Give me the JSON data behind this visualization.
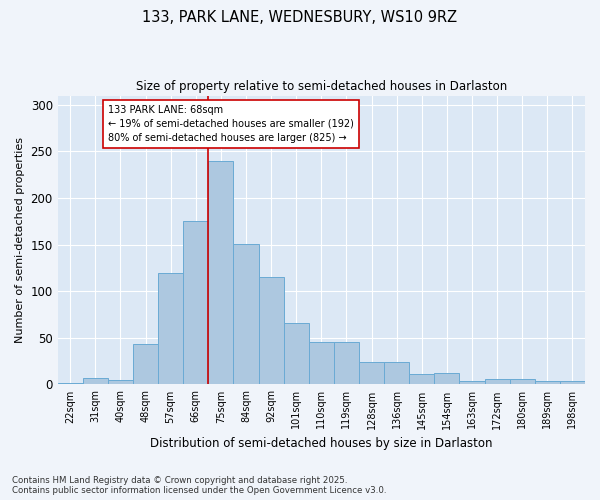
{
  "title1": "133, PARK LANE, WEDNESBURY, WS10 9RZ",
  "title2": "Size of property relative to semi-detached houses in Darlaston",
  "xlabel": "Distribution of semi-detached houses by size in Darlaston",
  "ylabel": "Number of semi-detached properties",
  "categories": [
    "22sqm",
    "31sqm",
    "40sqm",
    "48sqm",
    "57sqm",
    "66sqm",
    "75sqm",
    "84sqm",
    "92sqm",
    "101sqm",
    "110sqm",
    "119sqm",
    "128sqm",
    "136sqm",
    "145sqm",
    "154sqm",
    "163sqm",
    "172sqm",
    "180sqm",
    "189sqm",
    "198sqm"
  ],
  "values": [
    2,
    7,
    5,
    43,
    120,
    175,
    240,
    151,
    115,
    66,
    46,
    46,
    24,
    24,
    11,
    12,
    4,
    6,
    6,
    4,
    4
  ],
  "bar_color": "#adc8e0",
  "bar_edge_color": "#6aaad4",
  "vline_x": 5.5,
  "vline_color": "#cc0000",
  "annotation_text": "133 PARK LANE: 68sqm\n← 19% of semi-detached houses are smaller (192)\n80% of semi-detached houses are larger (825) →",
  "annotation_box_color": "#ffffff",
  "annotation_box_edge": "#cc0000",
  "ylim": [
    0,
    310
  ],
  "yticks": [
    0,
    50,
    100,
    150,
    200,
    250,
    300
  ],
  "bg_color": "#dce8f5",
  "fig_bg_color": "#f0f4fa",
  "footer1": "Contains HM Land Registry data © Crown copyright and database right 2025.",
  "footer2": "Contains public sector information licensed under the Open Government Licence v3.0."
}
